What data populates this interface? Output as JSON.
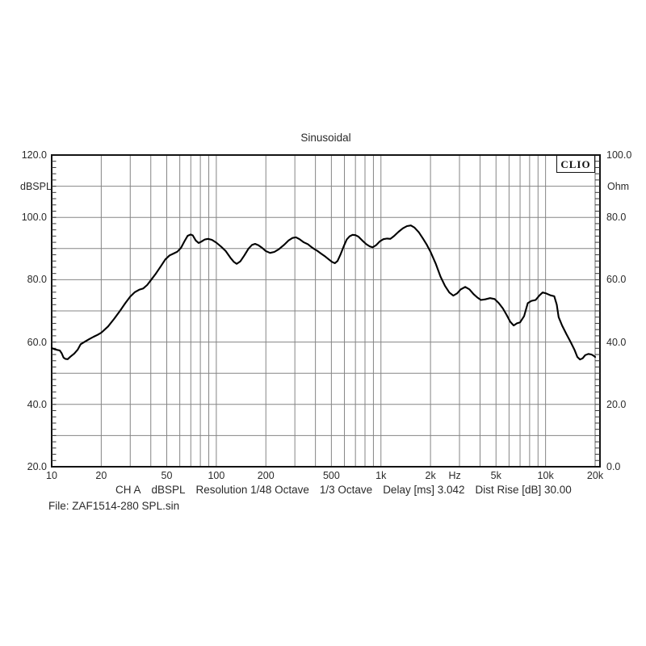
{
  "header": {
    "title": "Sinusoidal"
  },
  "branding": {
    "logo_text": "CLIO"
  },
  "axes": {
    "left_unit": "dBSPL",
    "right_unit": "Ohm",
    "x_unit": "Hz",
    "left_tick_labels": [
      "120.0",
      "100.0",
      "80.0",
      "60.0",
      "40.0",
      "20.0"
    ],
    "right_tick_labels": [
      "100.0",
      "80.0",
      "60.0",
      "40.0",
      "20.0",
      "0.0"
    ],
    "x_tick_labels": [
      {
        "f": 10,
        "label": "10"
      },
      {
        "f": 20,
        "label": "20"
      },
      {
        "f": 50,
        "label": "50"
      },
      {
        "f": 100,
        "label": "100"
      },
      {
        "f": 200,
        "label": "200"
      },
      {
        "f": 500,
        "label": "500"
      },
      {
        "f": 1000,
        "label": "1k"
      },
      {
        "f": 2000,
        "label": "2k"
      },
      {
        "f": 5000,
        "label": "5k"
      },
      {
        "f": 10000,
        "label": "10k"
      },
      {
        "f": 20000,
        "label": "20k"
      }
    ]
  },
  "status_bar": {
    "items": [
      "CH A",
      "dBSPL",
      "Resolution 1/48 Octave",
      "1/3 Octave",
      "Delay [ms] 3.042",
      "Dist Rise [dB] 30.00"
    ]
  },
  "file_bar": {
    "text": "File: ZAF1514-280 SPL.sin"
  },
  "chart_data": {
    "type": "line",
    "title": "Sinusoidal",
    "x_scale": "log",
    "xlim": [
      10,
      20000
    ],
    "ylim_left": [
      20,
      120
    ],
    "ylim_right": [
      0,
      100
    ],
    "ylabel_left": "dBSPL",
    "ylabel_right": "Ohm",
    "xlabel": "Hz",
    "grid": {
      "y_major_step": 10,
      "x_log_minors": true
    },
    "colors": {
      "curve": "#000000",
      "grid": "#858585",
      "frame": "#131313"
    },
    "series": [
      {
        "name": "ZAF1514-280 SPL",
        "unit": "dBSPL",
        "axis": "left",
        "points": [
          [
            10,
            58.1
          ],
          [
            10.4,
            57.7
          ],
          [
            10.8,
            57.5
          ],
          [
            11.2,
            57.3
          ],
          [
            11.5,
            56.4
          ],
          [
            11.8,
            55.0
          ],
          [
            12.1,
            54.6
          ],
          [
            12.5,
            54.5
          ],
          [
            13,
            55.3
          ],
          [
            13.7,
            56.3
          ],
          [
            14.4,
            57.6
          ],
          [
            15,
            59.3
          ],
          [
            16,
            60.2
          ],
          [
            17,
            61.0
          ],
          [
            18,
            61.7
          ],
          [
            19,
            62.3
          ],
          [
            20,
            63.0
          ],
          [
            22,
            65.0
          ],
          [
            24,
            67.5
          ],
          [
            26,
            70.0
          ],
          [
            28,
            72.5
          ],
          [
            30,
            74.6
          ],
          [
            32,
            76.0
          ],
          [
            34,
            76.8
          ],
          [
            36,
            77.2
          ],
          [
            38,
            78.3
          ],
          [
            40,
            79.8
          ],
          [
            43,
            82.0
          ],
          [
            46,
            84.3
          ],
          [
            49,
            86.5
          ],
          [
            52,
            87.8
          ],
          [
            55,
            88.4
          ],
          [
            58,
            89.0
          ],
          [
            61,
            90.2
          ],
          [
            64,
            92.3
          ],
          [
            67,
            94.1
          ],
          [
            70,
            94.5
          ],
          [
            72,
            94.2
          ],
          [
            75,
            92.6
          ],
          [
            78,
            91.8
          ],
          [
            81,
            92.2
          ],
          [
            85,
            92.9
          ],
          [
            89,
            93.1
          ],
          [
            94,
            92.8
          ],
          [
            100,
            91.9
          ],
          [
            107,
            90.6
          ],
          [
            114,
            89.2
          ],
          [
            122,
            87.0
          ],
          [
            128,
            85.7
          ],
          [
            133,
            85.1
          ],
          [
            140,
            85.9
          ],
          [
            148,
            87.8
          ],
          [
            157,
            90.0
          ],
          [
            165,
            91.2
          ],
          [
            172,
            91.5
          ],
          [
            180,
            91.1
          ],
          [
            190,
            90.2
          ],
          [
            200,
            89.2
          ],
          [
            212,
            88.6
          ],
          [
            225,
            88.9
          ],
          [
            240,
            89.8
          ],
          [
            258,
            91.2
          ],
          [
            275,
            92.6
          ],
          [
            290,
            93.4
          ],
          [
            305,
            93.6
          ],
          [
            320,
            93.0
          ],
          [
            340,
            92.0
          ],
          [
            360,
            91.4
          ],
          [
            380,
            90.4
          ],
          [
            395,
            89.8
          ],
          [
            410,
            89.3
          ],
          [
            430,
            88.5
          ],
          [
            455,
            87.6
          ],
          [
            480,
            86.6
          ],
          [
            505,
            85.7
          ],
          [
            525,
            85.3
          ],
          [
            545,
            86.0
          ],
          [
            570,
            88.3
          ],
          [
            595,
            90.8
          ],
          [
            620,
            92.9
          ],
          [
            645,
            93.9
          ],
          [
            672,
            94.4
          ],
          [
            700,
            94.3
          ],
          [
            730,
            93.8
          ],
          [
            770,
            92.6
          ],
          [
            815,
            91.4
          ],
          [
            855,
            90.7
          ],
          [
            890,
            90.4
          ],
          [
            935,
            91.1
          ],
          [
            985,
            92.3
          ],
          [
            1035,
            93.0
          ],
          [
            1090,
            93.2
          ],
          [
            1140,
            93.1
          ],
          [
            1200,
            94.0
          ],
          [
            1280,
            95.4
          ],
          [
            1360,
            96.5
          ],
          [
            1440,
            97.2
          ],
          [
            1520,
            97.4
          ],
          [
            1600,
            96.7
          ],
          [
            1700,
            95.2
          ],
          [
            1800,
            93.2
          ],
          [
            1900,
            91.2
          ],
          [
            2000,
            89.0
          ],
          [
            2150,
            85.2
          ],
          [
            2300,
            81.0
          ],
          [
            2450,
            78.0
          ],
          [
            2600,
            75.9
          ],
          [
            2750,
            74.9
          ],
          [
            2900,
            75.6
          ],
          [
            3050,
            76.9
          ],
          [
            3250,
            77.7
          ],
          [
            3450,
            76.9
          ],
          [
            3650,
            75.4
          ],
          [
            3850,
            74.3
          ],
          [
            4050,
            73.5
          ],
          [
            4300,
            73.7
          ],
          [
            4600,
            74.1
          ],
          [
            4900,
            73.8
          ],
          [
            5200,
            72.5
          ],
          [
            5500,
            70.8
          ],
          [
            5800,
            68.7
          ],
          [
            6100,
            66.5
          ],
          [
            6400,
            65.3
          ],
          [
            6700,
            66.0
          ],
          [
            7000,
            66.3
          ],
          [
            7400,
            68.3
          ],
          [
            7800,
            72.5
          ],
          [
            8200,
            73.2
          ],
          [
            8700,
            73.5
          ],
          [
            9200,
            75.0
          ],
          [
            9600,
            75.9
          ],
          [
            10100,
            75.6
          ],
          [
            10700,
            75.0
          ],
          [
            11300,
            74.7
          ],
          [
            11700,
            72.0
          ],
          [
            12000,
            68.0
          ],
          [
            12600,
            65.3
          ],
          [
            13400,
            62.5
          ],
          [
            14200,
            60.0
          ],
          [
            15000,
            57.5
          ],
          [
            15600,
            55.2
          ],
          [
            16200,
            54.4
          ],
          [
            16800,
            54.8
          ],
          [
            17400,
            55.8
          ],
          [
            18200,
            56.2
          ],
          [
            19000,
            56.0
          ],
          [
            19600,
            55.6
          ],
          [
            20000,
            55.2
          ]
        ]
      }
    ]
  }
}
